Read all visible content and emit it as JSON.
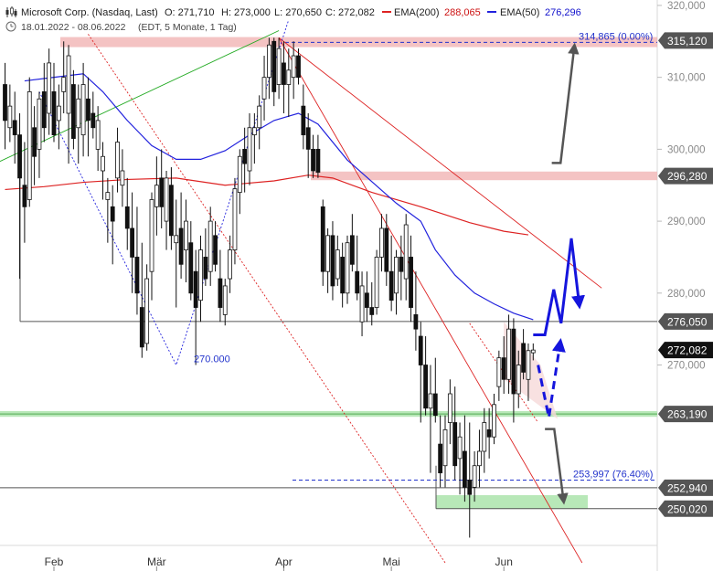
{
  "header": {
    "symbol": "Microsoft Corp. (Nasdaq, Last)",
    "open": "O: 271,710",
    "high": "H: 273,000",
    "low": "L: 270,650",
    "close": "C: 272,082",
    "ema200_label": "EMA(200)",
    "ema200_value": "288,065",
    "ema50_label": "EMA(50)",
    "ema50_value": "276,296",
    "date_range": "18.01.2022 - 08.06.2022",
    "period": "(EDT, 5 Monate, 1 Tag)"
  },
  "colors": {
    "ema200": "#dd2222",
    "ema50": "#2222dd",
    "resistance_band": "#f2b8b8",
    "support_band": "#b8e8b8",
    "label_dark": "#555555",
    "label_black": "#111111"
  },
  "chart_data": {
    "type": "candlestick",
    "y_ticks": [
      "270,000",
      "280,000",
      "290,000",
      "300,000",
      "310,000",
      "320,000"
    ],
    "y_tick_values": [
      270,
      280,
      290,
      300,
      310,
      320
    ],
    "x_ticks": [
      "Feb",
      "Mär",
      "Apr",
      "Mai",
      "Jun"
    ],
    "ylim": [
      242.5,
      320.5
    ],
    "price_levels": [
      {
        "label": "315,120",
        "value": 315.12,
        "style": "resistance"
      },
      {
        "label": "296,280",
        "value": 296.28,
        "style": "resistance"
      },
      {
        "label": "276,050",
        "value": 276.05,
        "style": "line"
      },
      {
        "label": "272,082",
        "value": 272.082,
        "style": "last"
      },
      {
        "label": "263,190",
        "value": 263.19,
        "style": "support"
      },
      {
        "label": "252,940",
        "value": 252.94,
        "style": "line"
      },
      {
        "label": "250,020",
        "value": 250.02,
        "style": "support"
      }
    ],
    "annotations": [
      {
        "text": "314,865 (0.00%)",
        "value": 314.865
      },
      {
        "text": "253,997 (76.40%)",
        "value": 253.997
      },
      {
        "text": "270.000",
        "value": 270.0
      }
    ],
    "candles": [
      {
        "o": 309.0,
        "h": 312.0,
        "l": 300.0,
        "c": 304.0
      },
      {
        "o": 303.0,
        "h": 309.0,
        "l": 301.0,
        "c": 306.0
      },
      {
        "o": 304.0,
        "h": 308.0,
        "l": 298.0,
        "c": 302.0
      },
      {
        "o": 302.0,
        "h": 305.0,
        "l": 282.0,
        "c": 296.0
      },
      {
        "o": 295.0,
        "h": 301.0,
        "l": 287.0,
        "c": 292.0
      },
      {
        "o": 293.0,
        "h": 310.0,
        "l": 292.0,
        "c": 308.0
      },
      {
        "o": 303.0,
        "h": 306.0,
        "l": 295.0,
        "c": 299.0
      },
      {
        "o": 300.0,
        "h": 308.0,
        "l": 296.0,
        "c": 307.0
      },
      {
        "o": 308.0,
        "h": 312.0,
        "l": 301.0,
        "c": 303.0
      },
      {
        "o": 305.0,
        "h": 314.0,
        "l": 302.0,
        "c": 312.0
      },
      {
        "o": 308.0,
        "h": 312.0,
        "l": 301.0,
        "c": 302.0
      },
      {
        "o": 304.0,
        "h": 309.0,
        "l": 300.0,
        "c": 306.0
      },
      {
        "o": 308.0,
        "h": 315.0,
        "l": 305.0,
        "c": 310.0
      },
      {
        "o": 305.0,
        "h": 314.5,
        "l": 298.0,
        "c": 313.0
      },
      {
        "o": 309.0,
        "h": 311.0,
        "l": 300.0,
        "c": 301.5
      },
      {
        "o": 303.0,
        "h": 309.0,
        "l": 298.0,
        "c": 307.0
      },
      {
        "o": 302.0,
        "h": 312.0,
        "l": 299.0,
        "c": 309.0
      },
      {
        "o": 307.0,
        "h": 310.0,
        "l": 299.0,
        "c": 304.0
      },
      {
        "o": 305.0,
        "h": 308.0,
        "l": 301.5,
        "c": 303.0
      },
      {
        "o": 300.0,
        "h": 306.0,
        "l": 297.0,
        "c": 304.0
      },
      {
        "o": 297.0,
        "h": 301.0,
        "l": 293.0,
        "c": 299.0
      },
      {
        "o": 293.0,
        "h": 296.0,
        "l": 287.0,
        "c": 294.0
      },
      {
        "o": 292.0,
        "h": 295.0,
        "l": 284.0,
        "c": 290.0
      },
      {
        "o": 296.0,
        "h": 303.0,
        "l": 294.0,
        "c": 301.0
      },
      {
        "o": 295.0,
        "h": 300.0,
        "l": 292.0,
        "c": 297.0
      },
      {
        "o": 292.0,
        "h": 296.0,
        "l": 286.0,
        "c": 289.0
      },
      {
        "o": 289.0,
        "h": 294.0,
        "l": 280.0,
        "c": 285.0
      },
      {
        "o": 285.0,
        "h": 292.0,
        "l": 277.0,
        "c": 280.0
      },
      {
        "o": 278.0,
        "h": 287.0,
        "l": 271.0,
        "c": 272.5
      },
      {
        "o": 273.0,
        "h": 284.0,
        "l": 272.0,
        "c": 282.0
      },
      {
        "o": 283.0,
        "h": 294.0,
        "l": 279.0,
        "c": 293.0
      },
      {
        "o": 292.0,
        "h": 299.0,
        "l": 288.0,
        "c": 295.0
      },
      {
        "o": 296.0,
        "h": 300.0,
        "l": 289.0,
        "c": 292.0
      },
      {
        "o": 290.0,
        "h": 297.0,
        "l": 286.0,
        "c": 296.0
      },
      {
        "o": 295.0,
        "h": 297.5,
        "l": 286.0,
        "c": 288.0
      },
      {
        "o": 287.0,
        "h": 293.0,
        "l": 278.0,
        "c": 288.0
      },
      {
        "o": 289.0,
        "h": 294.0,
        "l": 282.0,
        "c": 284.0
      },
      {
        "o": 286.0,
        "h": 293.0,
        "l": 281.5,
        "c": 290.0
      },
      {
        "o": 287.0,
        "h": 290.0,
        "l": 279.0,
        "c": 280.0
      },
      {
        "o": 283.0,
        "h": 286.0,
        "l": 270.0,
        "c": 278.0
      },
      {
        "o": 279.0,
        "h": 288.0,
        "l": 276.0,
        "c": 286.0
      },
      {
        "o": 285.0,
        "h": 289.0,
        "l": 281.0,
        "c": 282.0
      },
      {
        "o": 283.0,
        "h": 292.0,
        "l": 281.0,
        "c": 290.0
      },
      {
        "o": 288.0,
        "h": 290.0,
        "l": 283.0,
        "c": 284.0
      },
      {
        "o": 282.0,
        "h": 286.0,
        "l": 276.0,
        "c": 278.0
      },
      {
        "o": 277.0,
        "h": 282.0,
        "l": 275.5,
        "c": 281.0
      },
      {
        "o": 282.0,
        "h": 288.0,
        "l": 280.0,
        "c": 286.0
      },
      {
        "o": 286.0,
        "h": 296.0,
        "l": 284.0,
        "c": 294.5
      },
      {
        "o": 294.0,
        "h": 300.0,
        "l": 291.0,
        "c": 299.0
      },
      {
        "o": 300.0,
        "h": 303.0,
        "l": 294.0,
        "c": 298.0
      },
      {
        "o": 297.0,
        "h": 305.0,
        "l": 295.0,
        "c": 303.0
      },
      {
        "o": 302.0,
        "h": 305.0,
        "l": 298.0,
        "c": 303.0
      },
      {
        "o": 303.0,
        "h": 307.5,
        "l": 300.0,
        "c": 306.0
      },
      {
        "o": 307.0,
        "h": 313.0,
        "l": 304.0,
        "c": 310.0
      },
      {
        "o": 310.0,
        "h": 315.5,
        "l": 307.0,
        "c": 314.5
      },
      {
        "o": 315.0,
        "h": 315.5,
        "l": 306.0,
        "c": 308.0
      },
      {
        "o": 309.0,
        "h": 315.5,
        "l": 307.0,
        "c": 314.0
      },
      {
        "o": 312.0,
        "h": 315.0,
        "l": 305.0,
        "c": 309.0
      },
      {
        "o": 309.0,
        "h": 314.0,
        "l": 304.5,
        "c": 311.0
      },
      {
        "o": 310.0,
        "h": 315.0,
        "l": 307.0,
        "c": 313.0
      },
      {
        "o": 313.0,
        "h": 314.0,
        "l": 309.0,
        "c": 310.0
      },
      {
        "o": 306.0,
        "h": 309.0,
        "l": 300.0,
        "c": 302.0
      },
      {
        "o": 303.0,
        "h": 305.0,
        "l": 296.0,
        "c": 300.0
      },
      {
        "o": 300.0,
        "h": 302.0,
        "l": 296.0,
        "c": 297.0
      },
      {
        "o": 300.0,
        "h": 302.0,
        "l": 296.0,
        "c": 296.8
      },
      {
        "o": 292.0,
        "h": 293.0,
        "l": 281.0,
        "c": 283.0
      },
      {
        "o": 283.0,
        "h": 289.0,
        "l": 280.0,
        "c": 288.0
      },
      {
        "o": 288.0,
        "h": 290.0,
        "l": 279.0,
        "c": 281.0
      },
      {
        "o": 282.0,
        "h": 288.0,
        "l": 281.0,
        "c": 286.0
      },
      {
        "o": 285.0,
        "h": 287.0,
        "l": 278.0,
        "c": 280.0
      },
      {
        "o": 280.0,
        "h": 288.0,
        "l": 278.5,
        "c": 287.0
      },
      {
        "o": 288.0,
        "h": 291.0,
        "l": 283.0,
        "c": 284.0
      },
      {
        "o": 283.0,
        "h": 288.0,
        "l": 279.0,
        "c": 280.0
      },
      {
        "o": 276.0,
        "h": 283.0,
        "l": 274.0,
        "c": 281.0
      },
      {
        "o": 280.0,
        "h": 283.0,
        "l": 276.0,
        "c": 278.0
      },
      {
        "o": 278.0,
        "h": 281.5,
        "l": 275.5,
        "c": 277.0
      },
      {
        "o": 278.0,
        "h": 286.0,
        "l": 277.0,
        "c": 285.0
      },
      {
        "o": 285.0,
        "h": 291.0,
        "l": 283.0,
        "c": 289.0
      },
      {
        "o": 289.0,
        "h": 291.0,
        "l": 281.0,
        "c": 283.0
      },
      {
        "o": 283.0,
        "h": 288.0,
        "l": 277.5,
        "c": 279.0
      },
      {
        "o": 280.0,
        "h": 286.0,
        "l": 277.0,
        "c": 285.0
      },
      {
        "o": 285.0,
        "h": 288.0,
        "l": 279.0,
        "c": 283.0
      },
      {
        "o": 282.0,
        "h": 291.0,
        "l": 279.0,
        "c": 289.5
      },
      {
        "o": 285.0,
        "h": 288.0,
        "l": 276.0,
        "c": 278.0
      },
      {
        "o": 277.0,
        "h": 283.0,
        "l": 272.0,
        "c": 275.0
      },
      {
        "o": 274.0,
        "h": 276.0,
        "l": 262.0,
        "c": 270.0
      },
      {
        "o": 270.0,
        "h": 274.0,
        "l": 263.0,
        "c": 264.0
      },
      {
        "o": 264.0,
        "h": 270.0,
        "l": 255.0,
        "c": 266.0
      },
      {
        "o": 266.0,
        "h": 271.0,
        "l": 262.0,
        "c": 263.0
      },
      {
        "o": 259.0,
        "h": 263.0,
        "l": 253.0,
        "c": 255.0
      },
      {
        "o": 256.0,
        "h": 263.0,
        "l": 253.0,
        "c": 261.0
      },
      {
        "o": 262.0,
        "h": 268.0,
        "l": 259.0,
        "c": 266.0
      },
      {
        "o": 262.0,
        "h": 267.0,
        "l": 254.0,
        "c": 256.0
      },
      {
        "o": 257.0,
        "h": 262.0,
        "l": 252.0,
        "c": 260.0
      },
      {
        "o": 258.0,
        "h": 263.0,
        "l": 251.0,
        "c": 253.0
      },
      {
        "o": 254.0,
        "h": 262.0,
        "l": 246.0,
        "c": 252.0
      },
      {
        "o": 253.0,
        "h": 258.0,
        "l": 251.0,
        "c": 256.0
      },
      {
        "o": 256.0,
        "h": 261.0,
        "l": 253.0,
        "c": 258.0
      },
      {
        "o": 258.0,
        "h": 264.0,
        "l": 255.0,
        "c": 262.0
      },
      {
        "o": 261.0,
        "h": 264.0,
        "l": 257.0,
        "c": 260.0
      },
      {
        "o": 260.0,
        "h": 266.0,
        "l": 259.0,
        "c": 264.5
      },
      {
        "o": 267.0,
        "h": 272.0,
        "l": 265.0,
        "c": 271.0
      },
      {
        "o": 271.0,
        "h": 274.0,
        "l": 266.0,
        "c": 268.0
      },
      {
        "o": 268.0,
        "h": 277.0,
        "l": 266.0,
        "c": 275.0
      },
      {
        "o": 275.0,
        "h": 276.5,
        "l": 262.0,
        "c": 266.0
      },
      {
        "o": 266.0,
        "h": 272.0,
        "l": 264.0,
        "c": 270.0
      },
      {
        "o": 273.0,
        "h": 275.0,
        "l": 268.0,
        "c": 269.0
      },
      {
        "o": 268.0,
        "h": 273.0,
        "l": 265.0,
        "c": 272.0
      },
      {
        "o": 271.7,
        "h": 273.0,
        "l": 270.65,
        "c": 272.082
      }
    ],
    "ema200": [
      [
        0,
        294.4
      ],
      [
        8,
        294.8
      ],
      [
        16,
        295.4
      ],
      [
        25,
        295.8
      ],
      [
        35,
        296.0
      ],
      [
        45,
        295.0
      ],
      [
        55,
        295.6
      ],
      [
        62,
        296.4
      ],
      [
        67,
        296.0
      ],
      [
        75,
        294.0
      ],
      [
        85,
        292.0
      ],
      [
        95,
        289.8
      ],
      [
        102,
        288.6
      ],
      [
        107,
        288.1
      ]
    ],
    "ema50": [
      [
        4,
        309.5
      ],
      [
        10,
        310.0
      ],
      [
        16,
        310.5
      ],
      [
        20,
        308.0
      ],
      [
        25,
        304.0
      ],
      [
        30,
        300.5
      ],
      [
        35,
        298.6
      ],
      [
        40,
        298.6
      ],
      [
        45,
        299.8
      ],
      [
        50,
        302.0
      ],
      [
        55,
        304.0
      ],
      [
        60,
        305.0
      ],
      [
        64,
        303.5
      ],
      [
        70,
        298.5
      ],
      [
        75,
        295.5
      ],
      [
        80,
        292.5
      ],
      [
        85,
        290.0
      ],
      [
        88,
        286.0
      ],
      [
        92,
        282.5
      ],
      [
        96,
        280.0
      ],
      [
        100,
        278.5
      ],
      [
        104,
        277.2
      ],
      [
        108,
        276.3
      ]
    ],
    "projections": [
      {
        "type": "solid-blue",
        "points": [
          [
            108,
            274.2
          ],
          [
            110.4,
            274.2
          ],
          [
            112.2,
            280.5
          ],
          [
            113.7,
            275.8
          ],
          [
            115.8,
            287.6
          ],
          [
            117.4,
            278.5
          ]
        ]
      },
      {
        "type": "dashed-blue",
        "points": [
          [
            109,
            270.0
          ],
          [
            111.2,
            262.7
          ],
          [
            113.5,
            273.0
          ]
        ]
      },
      {
        "type": "solid-gray-up",
        "points": [
          [
            111.8,
            298.1
          ],
          [
            113.6,
            298.1
          ],
          [
            116.4,
            314.2
          ]
        ]
      },
      {
        "type": "solid-gray-down",
        "points": [
          [
            110.4,
            261.1
          ],
          [
            112.3,
            261.1
          ],
          [
            114.2,
            251.2
          ]
        ]
      }
    ],
    "trendlines": [
      {
        "color": "#dd2222",
        "style": "solid",
        "points": [
          [
            56,
            315.5
          ],
          [
            122,
            280.7
          ]
        ]
      },
      {
        "color": "#dd2222",
        "style": "solid",
        "points": [
          [
            56,
            315.5
          ],
          [
            118,
            242.5
          ]
        ]
      },
      {
        "color": "#dd2222",
        "style": "dotted",
        "points": [
          [
            17,
            316.0
          ],
          [
            90,
            242.5
          ]
        ]
      },
      {
        "color": "#dd2222",
        "style": "dotted",
        "points": [
          [
            95,
            275.8
          ],
          [
            109,
            262.0
          ]
        ]
      },
      {
        "color": "#22aa22",
        "style": "solid",
        "points": [
          [
            -2,
            298.0
          ],
          [
            56,
            316.5
          ]
        ]
      },
      {
        "color": "#2222dd",
        "style": "dotted",
        "points": [
          [
            7,
            308.0
          ],
          [
            35,
            270.0
          ],
          [
            58,
            318.0
          ]
        ]
      }
    ]
  }
}
